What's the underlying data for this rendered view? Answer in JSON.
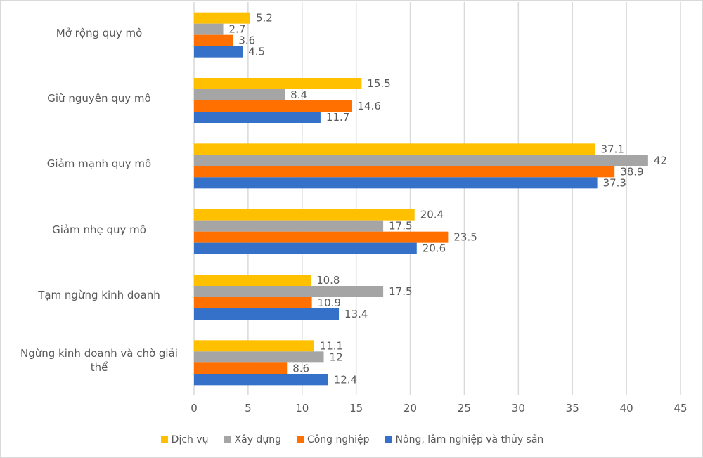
{
  "chart_data": {
    "type": "bar",
    "orientation": "horizontal",
    "categories": [
      "Mở rộng quy mô",
      "Giữ nguyên quy mô",
      "Giảm mạnh quy mô",
      "Giảm nhẹ quy mô",
      "Tạm ngừng kinh doanh",
      "Ngừng kinh doanh và chờ giải thể"
    ],
    "series": [
      {
        "name": "Dịch vụ",
        "color": "#FFC000",
        "values": [
          5.2,
          15.5,
          37.1,
          20.4,
          10.8,
          11.1
        ]
      },
      {
        "name": "Xây dựng",
        "color": "#A5A5A5",
        "values": [
          2.7,
          8.4,
          42,
          17.5,
          17.5,
          12
        ]
      },
      {
        "name": "Công nghiệp",
        "color": "#FF7000",
        "values": [
          3.6,
          14.6,
          38.9,
          23.5,
          10.9,
          8.6
        ]
      },
      {
        "name": "Nông, lâm nghiệp và thủy sản",
        "color": "#3571C9",
        "values": [
          4.5,
          11.7,
          37.3,
          20.6,
          13.4,
          12.4
        ]
      }
    ],
    "xlim": [
      0,
      45
    ],
    "xticks": [
      "0",
      "5",
      "10",
      "15",
      "20",
      "25",
      "30",
      "35",
      "40",
      "45"
    ],
    "grid": true,
    "data_labels": true,
    "legend": "bottom"
  }
}
